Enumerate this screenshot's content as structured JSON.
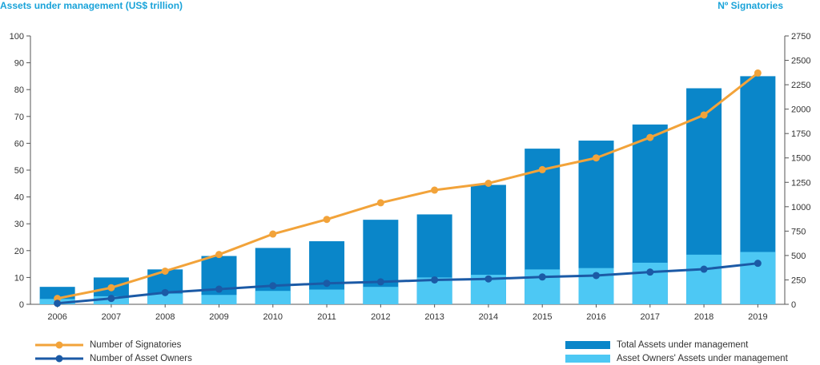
{
  "chart_data": {
    "type": "bar",
    "left_axis_title": "Assets under management (US$ trillion)",
    "right_axis_title": "Nº Signatories",
    "categories": [
      "2006",
      "2007",
      "2008",
      "2009",
      "2010",
      "2011",
      "2012",
      "2013",
      "2014",
      "2015",
      "2016",
      "2017",
      "2018",
      "2019"
    ],
    "left_ylim": [
      0,
      100
    ],
    "left_ticks": [
      0,
      10,
      20,
      30,
      40,
      50,
      60,
      70,
      80,
      90,
      100
    ],
    "right_ylim": [
      0,
      2750
    ],
    "right_ticks": [
      0,
      250,
      500,
      750,
      1000,
      1250,
      1500,
      1750,
      2000,
      2250,
      2500,
      2750
    ],
    "grid": false,
    "series": [
      {
        "name": "Total Assets under management",
        "kind": "bar",
        "axis": "left",
        "color": "#0a86c9",
        "values": [
          6.5,
          10,
          13,
          18,
          21,
          23.5,
          31.5,
          33.5,
          44.5,
          58,
          61,
          67,
          80.5,
          85
        ]
      },
      {
        "name": "Asset Owners' Assets under management",
        "kind": "bar",
        "axis": "left",
        "color": "#4dc8f4",
        "values": [
          2,
          3,
          4,
          3.5,
          5,
          5.5,
          6.5,
          10,
          11,
          13,
          13.5,
          15.5,
          18.5,
          19.5
        ]
      },
      {
        "name": "Number of Signatories",
        "kind": "line",
        "axis": "right",
        "color": "#f2a33a",
        "values": [
          60,
          170,
          340,
          510,
          720,
          870,
          1040,
          1170,
          1240,
          1380,
          1500,
          1710,
          1940,
          2370
        ]
      },
      {
        "name": "Number of Asset Owners",
        "kind": "line",
        "axis": "right",
        "color": "#1b5aa6",
        "values": [
          10,
          60,
          120,
          155,
          190,
          215,
          230,
          250,
          260,
          280,
          295,
          330,
          360,
          420
        ]
      }
    ],
    "legend_position": "bottom"
  }
}
